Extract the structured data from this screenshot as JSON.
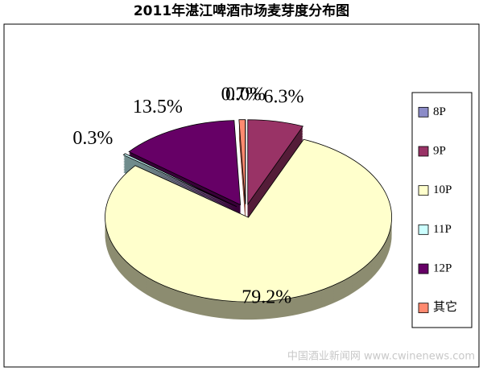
{
  "chart_data": {
    "type": "pie3d",
    "title": "2011年湛江啤酒市场麦芽度分布图",
    "categories": [
      "8P",
      "9P",
      "10P",
      "11P",
      "12P",
      "其它"
    ],
    "values": [
      0.0,
      6.3,
      79.2,
      0.3,
      13.5,
      0.7
    ],
    "value_labels": [
      "0.0%",
      "6.3%",
      "79.2%",
      "0.3%",
      "13.5%",
      "0.7%"
    ],
    "colors": [
      "#8c8cc8",
      "#993366",
      "#ffffcc",
      "#ccffff",
      "#660066",
      "#ff8a70"
    ],
    "legend": "right",
    "watermark": "中国酒业新闻网 www.cwinenews.com"
  }
}
